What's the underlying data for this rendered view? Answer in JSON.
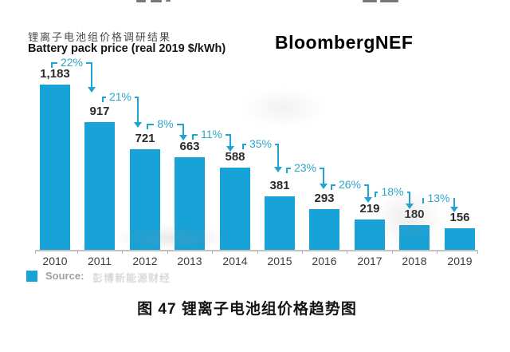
{
  "page": {
    "brand": "BloombergNEF",
    "caption": "图 47  锂离子电池组价格趋势图"
  },
  "chart_data": {
    "type": "bar",
    "title": "锂离子电池组价格调研结果",
    "subtitle": "Battery pack price (real 2019 $/kWh)",
    "ylabel": "Battery pack price (real 2019 $/kWh)",
    "categories": [
      "2010",
      "2011",
      "2012",
      "2013",
      "2014",
      "2015",
      "2016",
      "2017",
      "2018",
      "2019"
    ],
    "values": [
      1183,
      917,
      721,
      663,
      588,
      381,
      293,
      219,
      180,
      156
    ],
    "value_labels": [
      "1,183",
      "917",
      "721",
      "663",
      "588",
      "381",
      "293",
      "219",
      "180",
      "156"
    ],
    "decline_labels": [
      "22%",
      "21%",
      "8%",
      "11%",
      "35%",
      "23%",
      "26%",
      "18%",
      "13%"
    ],
    "ylim": [
      0,
      1250
    ],
    "grid": false,
    "legend_position": "bottom-left",
    "bar_color": "#17a2d8",
    "annotation_color": "#1fa3d4",
    "source": {
      "label": "Source:",
      "value": "彭博新能源财经"
    }
  }
}
